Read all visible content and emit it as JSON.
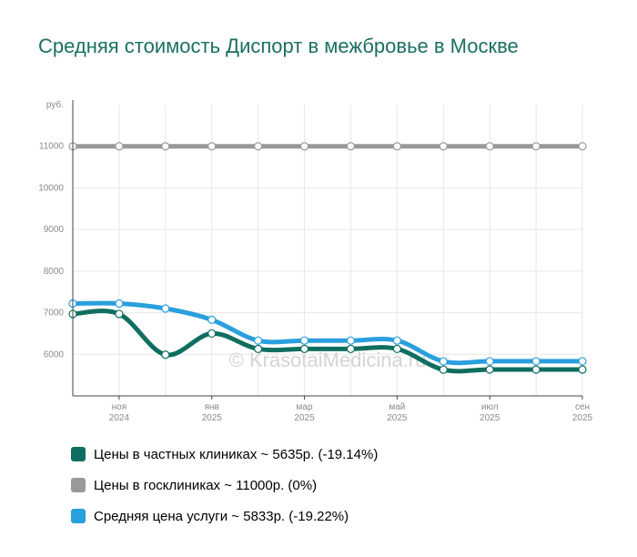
{
  "chart_data": {
    "type": "line",
    "title": "Средняя стоимость Диспорт в межбровье в Москве",
    "ylabel": "руб.",
    "ylim": [
      5000,
      12000
    ],
    "yticks": [
      6000,
      7000,
      8000,
      9000,
      10000,
      11000
    ],
    "x_tick_labels": [
      {
        "index": 1,
        "month": "ноя",
        "year": "2024"
      },
      {
        "index": 3,
        "month": "янв",
        "year": "2025"
      },
      {
        "index": 5,
        "month": "мар",
        "year": "2025"
      },
      {
        "index": 7,
        "month": "май",
        "year": "2025"
      },
      {
        "index": 9,
        "month": "июл",
        "year": "2025"
      },
      {
        "index": 11,
        "month": "сен",
        "year": "2025"
      }
    ],
    "x": [
      "окт 2024",
      "ноя 2024",
      "дек 2024",
      "янв 2025",
      "фев 2025",
      "мар 2025",
      "апр 2025",
      "май 2025",
      "июн 2025",
      "июл 2025",
      "авг 2025",
      "сен 2025"
    ],
    "series": [
      {
        "name": "Цены в частных клиниках",
        "color": "#0f6e60",
        "values": [
          6970,
          6970,
          5990,
          6500,
          6130,
          6130,
          6130,
          6130,
          5630,
          5635,
          5635,
          5635
        ]
      },
      {
        "name": "Цены в госклиниках",
        "color": "#999999",
        "values": [
          11000,
          11000,
          11000,
          11000,
          11000,
          11000,
          11000,
          11000,
          11000,
          11000,
          11000,
          11000
        ]
      },
      {
        "name": "Средняя цена услуги",
        "color": "#2a9fdd",
        "values": [
          7220,
          7220,
          7100,
          6830,
          6330,
          6330,
          6330,
          6330,
          5830,
          5833,
          5833,
          5833
        ]
      }
    ],
    "legend": [
      "Цены в частных клиниках ~ 5635р. (-19.14%)",
      "Цены в госклиниках ~ 11000р. (0%)",
      "Средняя цена услуги ~ 5833р. (-19.22%)"
    ],
    "watermark": "© KrasotaiMedicina.ru"
  }
}
